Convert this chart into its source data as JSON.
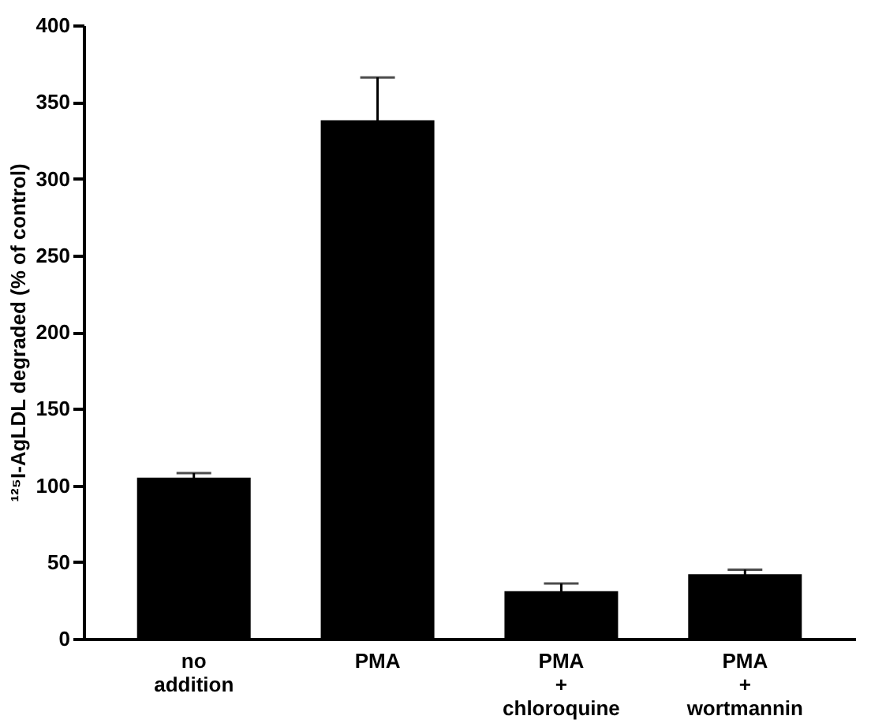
{
  "chart_data": {
    "type": "bar",
    "ylabel": "¹²⁵I-AgLDL degraded (% of control)",
    "categories": [
      "no addition",
      "PMA",
      "PMA + chloroquine",
      "PMA + wortmannin"
    ],
    "values": [
      105,
      338,
      31,
      42
    ],
    "errors": [
      3,
      28,
      5,
      3
    ],
    "color": "#000000",
    "ylim": [
      0,
      400
    ],
    "yticks": [
      0,
      50,
      100,
      150,
      200,
      250,
      300,
      350,
      400
    ],
    "grid": false
  }
}
